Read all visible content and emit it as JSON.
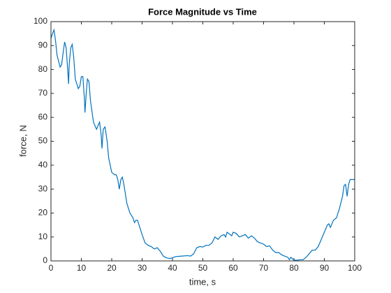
{
  "chart_data": {
    "type": "line",
    "title": "Force Magnitude vs Time",
    "xlabel": "time, s",
    "ylabel": "force, N",
    "x": [
      0,
      0.5,
      1,
      1.5,
      2,
      3,
      3.5,
      4,
      4.5,
      5,
      5.5,
      5.8,
      6,
      6.5,
      7,
      7.5,
      8,
      9,
      9.5,
      10,
      10.5,
      11,
      11.2,
      11.6,
      12,
      12.5,
      13,
      14,
      15,
      16,
      16.5,
      16.8,
      17.2,
      17.8,
      18.5,
      19,
      20,
      21,
      21.5,
      22,
      22.5,
      23,
      23.5,
      24,
      25,
      26,
      27,
      27.5,
      28,
      28.5,
      29,
      30,
      31,
      32,
      33,
      34,
      35,
      36,
      37,
      38,
      39,
      40,
      41,
      43,
      45,
      46,
      47,
      48,
      49,
      50,
      51,
      52,
      53,
      54,
      55,
      56,
      57,
      57.5,
      58,
      59,
      59.5,
      60,
      61,
      62,
      63,
      64,
      65,
      66,
      67,
      68,
      69,
      70,
      71,
      72,
      73,
      74,
      75,
      76,
      77,
      78,
      78.5,
      79,
      80,
      81,
      82,
      83,
      84,
      85,
      86,
      87,
      88,
      89,
      90,
      91,
      91.5,
      92,
      93,
      94,
      95,
      96,
      96.5,
      97,
      97.5,
      98,
      98.5,
      100
    ],
    "series": [
      {
        "color": "#0072bd",
        "values": [
          93,
          95,
          96.5,
          92,
          86,
          81,
          82,
          87,
          91.5,
          89,
          80,
          74,
          82,
          89,
          90.5,
          85,
          76,
          72,
          73,
          77,
          77,
          68,
          62,
          70,
          76,
          75,
          67,
          58,
          55,
          58,
          53,
          47,
          55,
          56,
          50,
          43,
          37,
          36,
          36,
          34,
          30,
          34,
          35,
          32,
          24,
          20,
          18,
          16,
          17,
          17,
          15,
          11,
          7.5,
          6.5,
          6,
          5,
          5.5,
          4,
          2,
          1.3,
          1,
          1.3,
          1.8,
          2,
          2.2,
          2,
          3,
          5.5,
          6,
          5.8,
          6.5,
          6.5,
          7.5,
          10,
          9,
          10.5,
          11,
          10,
          12,
          11,
          10.5,
          12,
          11.5,
          10,
          10.5,
          11,
          9.5,
          10.5,
          9.5,
          8,
          7.5,
          7,
          6,
          6.3,
          4.5,
          3.5,
          3.5,
          2.5,
          2,
          1.5,
          0.5,
          1.5,
          0.3,
          0.3,
          0.5,
          0.5,
          1.5,
          3,
          4.5,
          4.5,
          6,
          9,
          12,
          15,
          15.5,
          14,
          17,
          18,
          22,
          27,
          31.5,
          32,
          27,
          32,
          34,
          34
        ]
      }
    ],
    "xlim": [
      0,
      100
    ],
    "xticks": [
      0,
      10,
      20,
      30,
      40,
      50,
      60,
      70,
      80,
      90,
      100
    ],
    "ylim": [
      0,
      100
    ],
    "yticks": [
      0,
      10,
      20,
      30,
      40,
      50,
      60,
      70,
      80,
      90,
      100
    ]
  }
}
